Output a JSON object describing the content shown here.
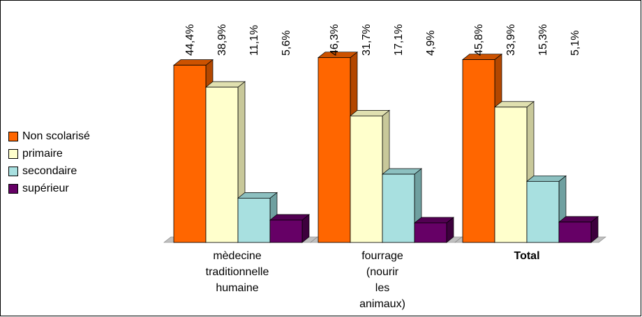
{
  "chart_data": {
    "type": "bar",
    "categories": [
      "mèdecine traditionnelle humaine",
      "fourrage (nourir les animaux)",
      "Total"
    ],
    "category_lines": [
      [
        "mèdecine",
        "traditionnelle",
        "humaine"
      ],
      [
        "fourrage",
        "(nourir",
        "les",
        "animaux)"
      ],
      [
        "Total"
      ]
    ],
    "series": [
      {
        "name": "Non scolarisé",
        "values": [
          44.4,
          46.3,
          45.8
        ],
        "labels": [
          "44,4%",
          "46,3%",
          "45,8%"
        ]
      },
      {
        "name": "primaire",
        "values": [
          38.9,
          31.7,
          33.9
        ],
        "labels": [
          "38,9%",
          "31,7%",
          "33,9%"
        ]
      },
      {
        "name": "secondaire",
        "values": [
          11.1,
          17.1,
          15.3
        ],
        "labels": [
          "11,1%",
          "17,1%",
          "15,3%"
        ]
      },
      {
        "name": "supérieur",
        "values": [
          5.6,
          4.9,
          5.1
        ],
        "labels": [
          "5,6%",
          "4,9%",
          "5,1%"
        ]
      }
    ],
    "title": "",
    "xlabel": "",
    "ylabel": "",
    "ylim": [
      0,
      50
    ],
    "legend_position": "left",
    "grid": false
  },
  "colors": {
    "series_front": [
      "#FF6600",
      "#FFFFCC",
      "#A8E0E0",
      "#660066"
    ],
    "series_side": [
      "#B34700",
      "#C8C89A",
      "#6FA0A0",
      "#3D003D"
    ],
    "series_top": [
      "#CC5200",
      "#E0E0B0",
      "#8CC0C0",
      "#520052"
    ],
    "floor": "#C0C0C0"
  }
}
